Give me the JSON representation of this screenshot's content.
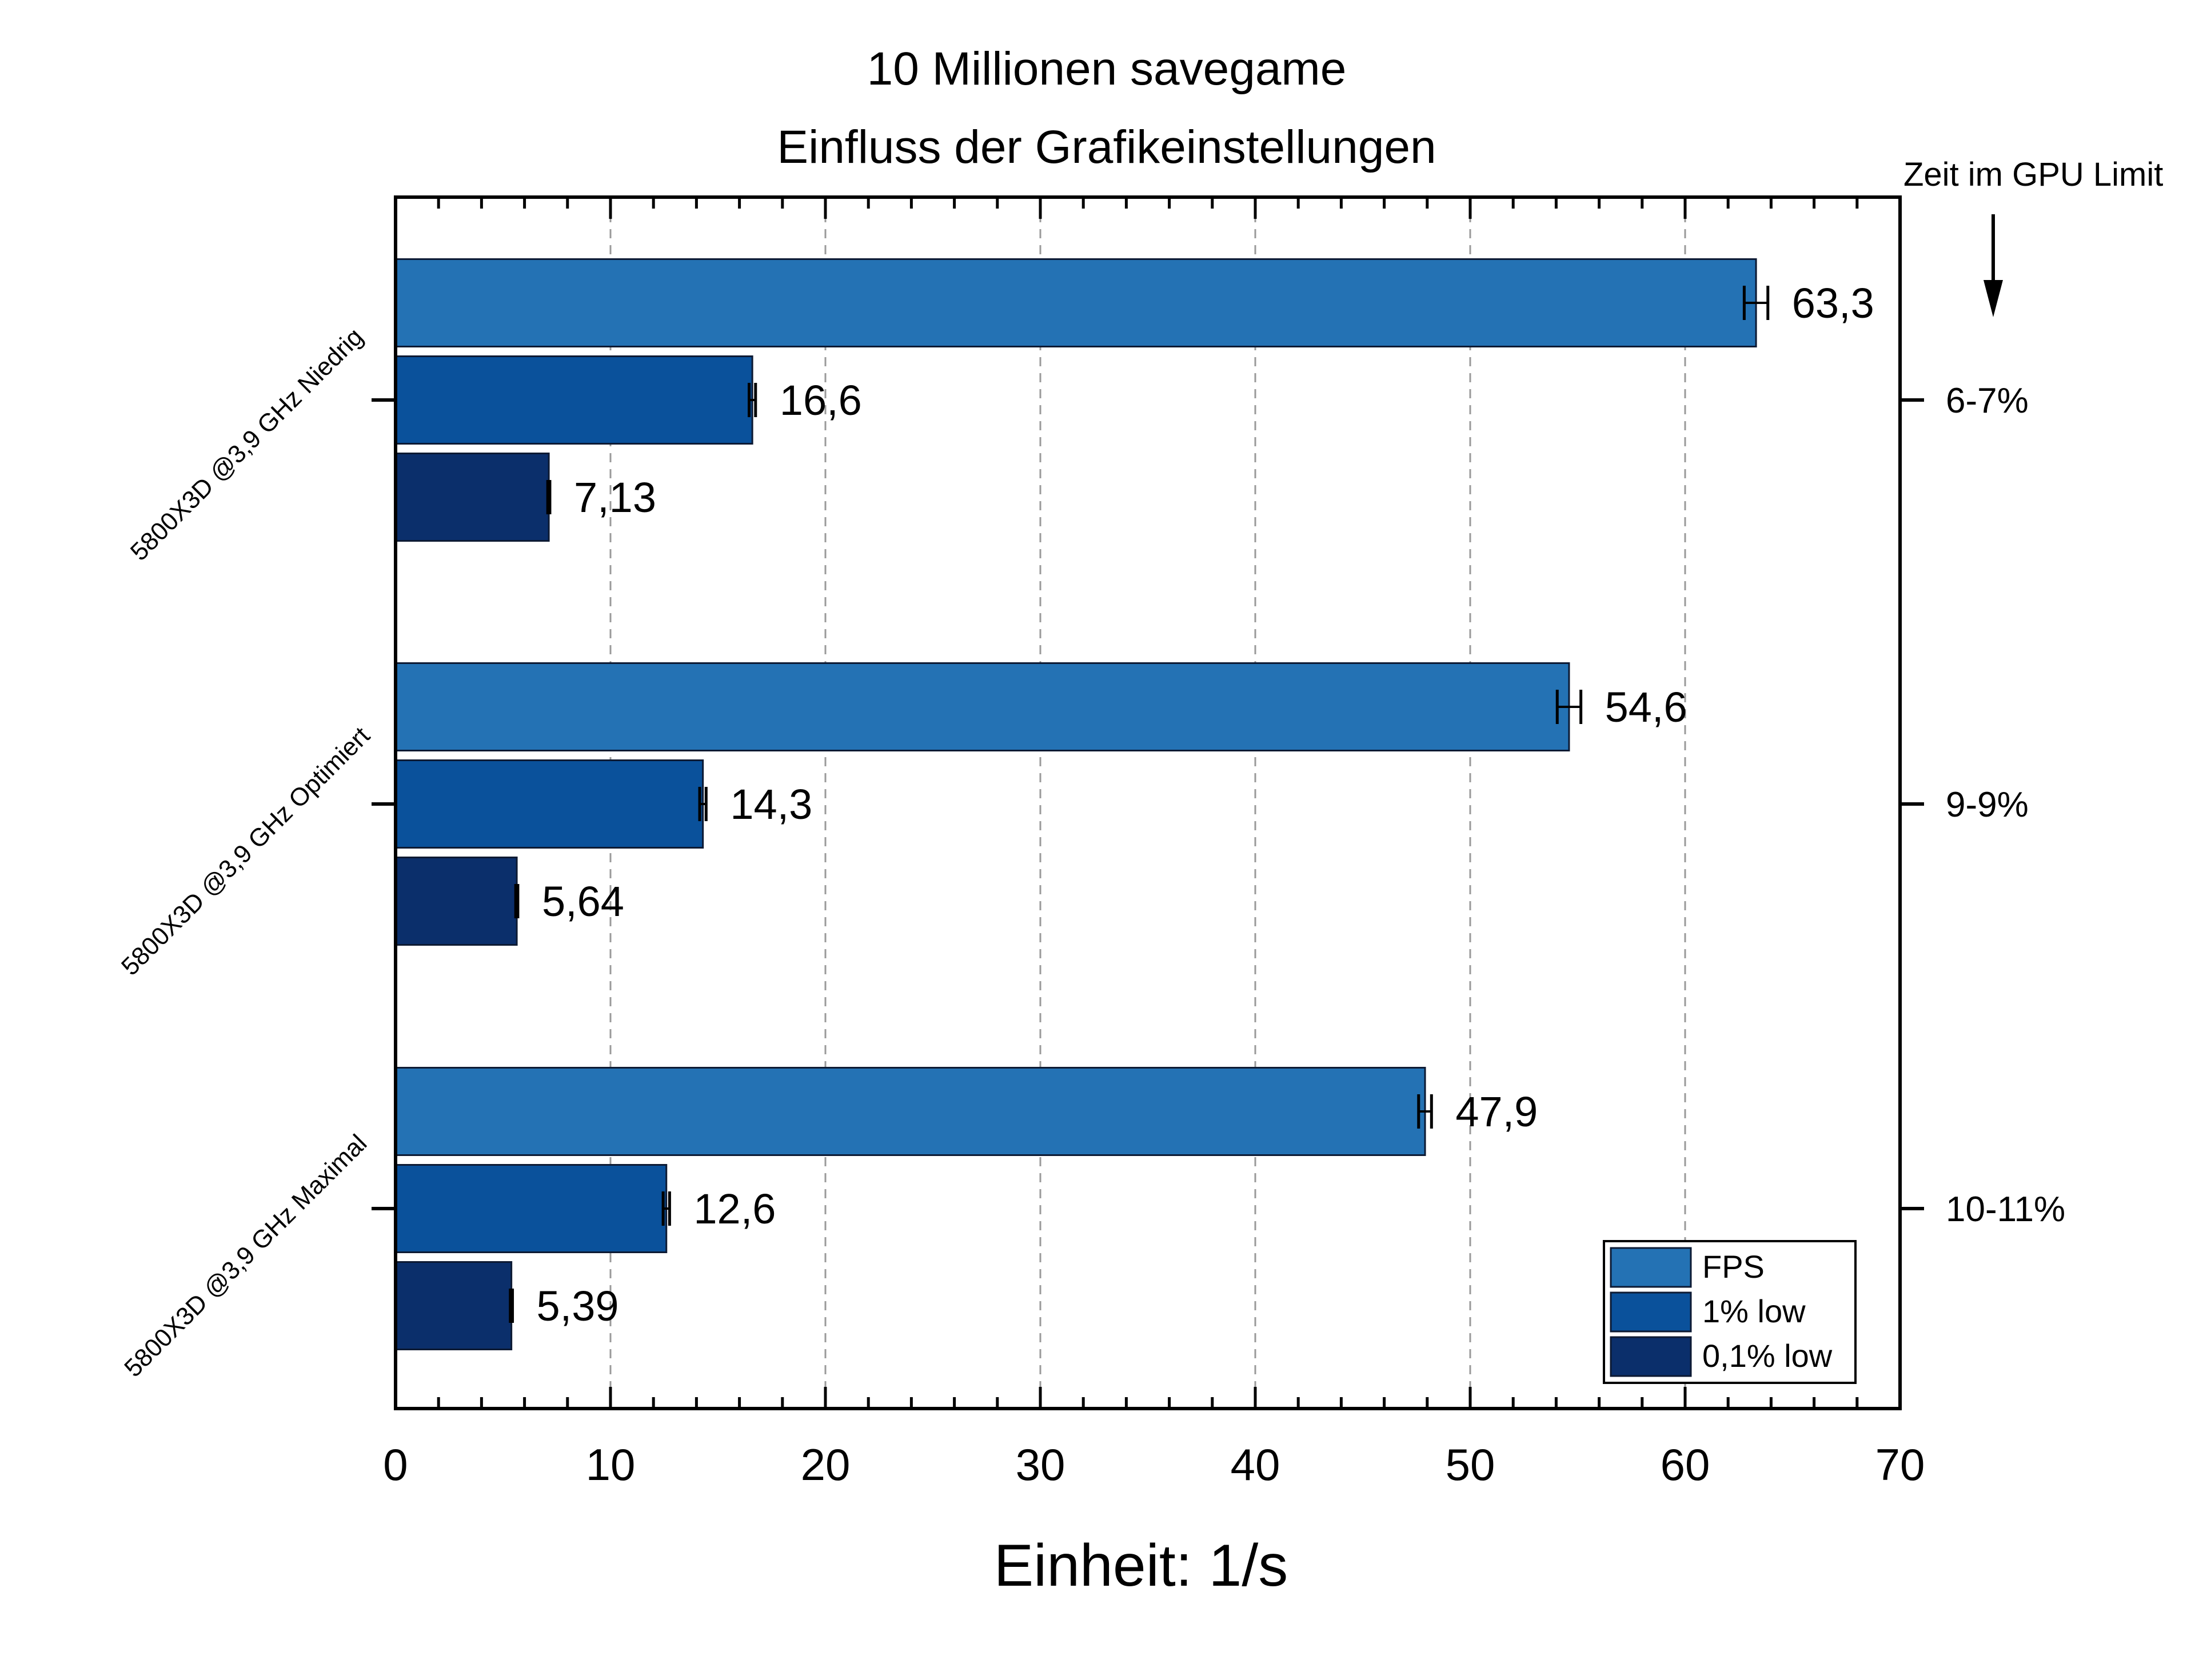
{
  "chart_data": {
    "type": "bar",
    "orientation": "horizontal",
    "title": [
      "10 Millionen savegame",
      "Einfluss der Grafikeinstellungen"
    ],
    "xlabel": "Einheit: 1/s",
    "xlim": [
      0,
      70
    ],
    "xticks": [
      "0",
      "10",
      "20",
      "30",
      "40",
      "50",
      "60",
      "70"
    ],
    "grid": "vertical dashed",
    "categories": [
      "5800X3D @3,9 GHz Niedrig",
      "5800X3D @3,9 GHz Optimiert",
      "5800X3D @3,9 GHz Maximal"
    ],
    "series": [
      {
        "name": "FPS",
        "color": "#2472b4",
        "values": [
          63.3,
          54.6,
          47.9
        ],
        "labels": [
          "63,3",
          "54,6",
          "47,9"
        ],
        "errors": [
          0.55,
          0.55,
          0.3
        ]
      },
      {
        "name": "1% low",
        "color": "#0a519b",
        "values": [
          16.6,
          14.3,
          12.6
        ],
        "labels": [
          "16,6",
          "14,3",
          "12,6"
        ],
        "errors": [
          0.15,
          0.15,
          0.15
        ]
      },
      {
        "name": "0,1% low",
        "color": "#0b2f6b",
        "values": [
          7.13,
          5.64,
          5.39
        ],
        "labels": [
          "7,13",
          "5,64",
          "5,39"
        ],
        "errors": [
          0.05,
          0.05,
          0.05
        ]
      }
    ],
    "right_axis": {
      "note": "Zeit im GPU Limit",
      "labels": [
        "6-7%",
        "9-9%",
        "10-11%"
      ]
    },
    "legend": {
      "position": "bottom-right",
      "entries": [
        "FPS",
        "1% low",
        "0,1% low"
      ]
    }
  }
}
